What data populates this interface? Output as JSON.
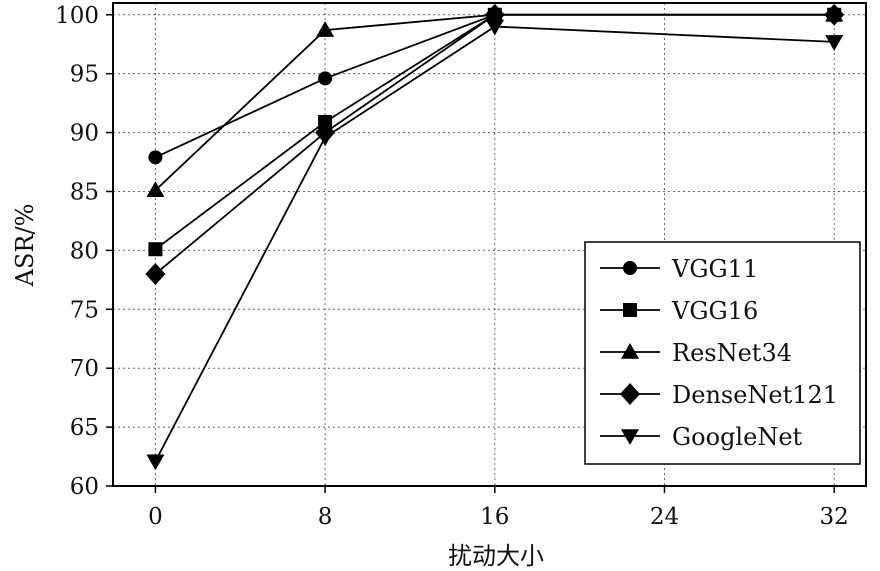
{
  "chart_data": {
    "type": "line",
    "title": "",
    "xlabel": "扰动大小",
    "ylabel": "ASR/%",
    "x": [
      0,
      8,
      16,
      32
    ],
    "xticks": [
      0,
      8,
      16,
      24,
      32
    ],
    "xtick_labels": [
      "0",
      "8",
      "16",
      "24",
      "32"
    ],
    "yticks": [
      60,
      65,
      70,
      75,
      80,
      85,
      90,
      95,
      100
    ],
    "ytick_labels": [
      "60",
      "65",
      "70",
      "75",
      "80",
      "85",
      "90",
      "95",
      "100"
    ],
    "xlim": [
      -2,
      33.5
    ],
    "ylim": [
      60,
      101
    ],
    "grid": true,
    "legend_position": "center-right",
    "series": [
      {
        "name": "VGG11",
        "marker": "circle",
        "values": [
          87.9,
          94.6,
          100,
          100
        ]
      },
      {
        "name": "VGG16",
        "marker": "square",
        "values": [
          80.1,
          90.9,
          100,
          100
        ]
      },
      {
        "name": "ResNet34",
        "marker": "triangle-up",
        "values": [
          85.1,
          98.7,
          100,
          100
        ]
      },
      {
        "name": "DenseNet121",
        "marker": "diamond",
        "values": [
          78.0,
          90.0,
          100,
          100
        ]
      },
      {
        "name": "GoogleNet",
        "marker": "triangle-down",
        "values": [
          62.1,
          89.6,
          99.0,
          97.7
        ]
      }
    ],
    "colors": {
      "line": "#000000",
      "grid": "#666666",
      "background": "#ffffff"
    }
  }
}
